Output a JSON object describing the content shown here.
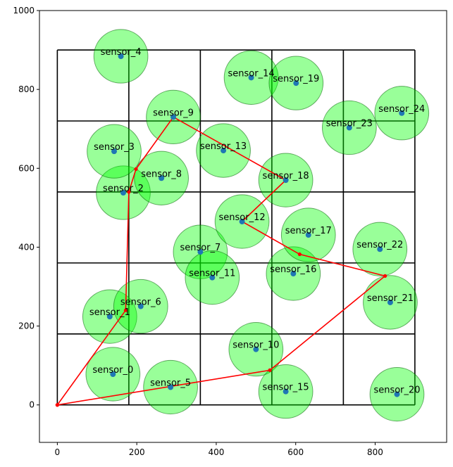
{
  "chart_data": {
    "type": "scatter",
    "title": "",
    "xlabel": "",
    "ylabel": "",
    "xlim": [
      -45,
      980
    ],
    "ylim": [
      -95,
      1000
    ],
    "xticks": [
      0,
      200,
      400,
      600,
      800
    ],
    "yticks": [
      0,
      200,
      400,
      600,
      800,
      1000
    ],
    "grid_lines": {
      "x": [
        0,
        180,
        360,
        540,
        720,
        900
      ],
      "y": [
        0,
        180,
        360,
        540,
        720,
        900
      ]
    },
    "sensor_radius": 68,
    "sensors": [
      {
        "name": "sensor_0",
        "x": 140,
        "y": 78
      },
      {
        "name": "sensor_1",
        "x": 132,
        "y": 224
      },
      {
        "name": "sensor_2",
        "x": 166,
        "y": 538
      },
      {
        "name": "sensor_3",
        "x": 143,
        "y": 643
      },
      {
        "name": "sensor_4",
        "x": 160,
        "y": 884
      },
      {
        "name": "sensor_5",
        "x": 285,
        "y": 45
      },
      {
        "name": "sensor_6",
        "x": 210,
        "y": 250
      },
      {
        "name": "sensor_7",
        "x": 360,
        "y": 388
      },
      {
        "name": "sensor_8",
        "x": 262,
        "y": 575
      },
      {
        "name": "sensor_9",
        "x": 292,
        "y": 730
      },
      {
        "name": "sensor_10",
        "x": 500,
        "y": 141
      },
      {
        "name": "sensor_11",
        "x": 390,
        "y": 323
      },
      {
        "name": "sensor_12",
        "x": 465,
        "y": 465
      },
      {
        "name": "sensor_13",
        "x": 418,
        "y": 645
      },
      {
        "name": "sensor_14",
        "x": 488,
        "y": 830
      },
      {
        "name": "sensor_15",
        "x": 575,
        "y": 34
      },
      {
        "name": "sensor_16",
        "x": 594,
        "y": 333
      },
      {
        "name": "sensor_17",
        "x": 632,
        "y": 431
      },
      {
        "name": "sensor_18",
        "x": 575,
        "y": 570
      },
      {
        "name": "sensor_19",
        "x": 601,
        "y": 816
      },
      {
        "name": "sensor_20",
        "x": 855,
        "y": 27
      },
      {
        "name": "sensor_21",
        "x": 838,
        "y": 260
      },
      {
        "name": "sensor_22",
        "x": 812,
        "y": 395
      },
      {
        "name": "sensor_23",
        "x": 735,
        "y": 703
      },
      {
        "name": "sensor_24",
        "x": 867,
        "y": 740
      }
    ],
    "path": [
      {
        "x": 0,
        "y": 0
      },
      {
        "x": 172,
        "y": 240
      },
      {
        "x": 180,
        "y": 540
      },
      {
        "x": 198,
        "y": 598
      },
      {
        "x": 292,
        "y": 730
      },
      {
        "x": 575,
        "y": 570
      },
      {
        "x": 465,
        "y": 465
      },
      {
        "x": 610,
        "y": 382
      },
      {
        "x": 825,
        "y": 327
      },
      {
        "x": 535,
        "y": 88
      },
      {
        "x": 0,
        "y": 0
      }
    ],
    "colors": {
      "coverage_fill": "#00ff00",
      "coverage_alpha": 0.4,
      "coverage_edge": "#006400",
      "sensor_dot": "#1f77b4",
      "path_line": "#ff0000",
      "grid_line": "#000000"
    }
  }
}
